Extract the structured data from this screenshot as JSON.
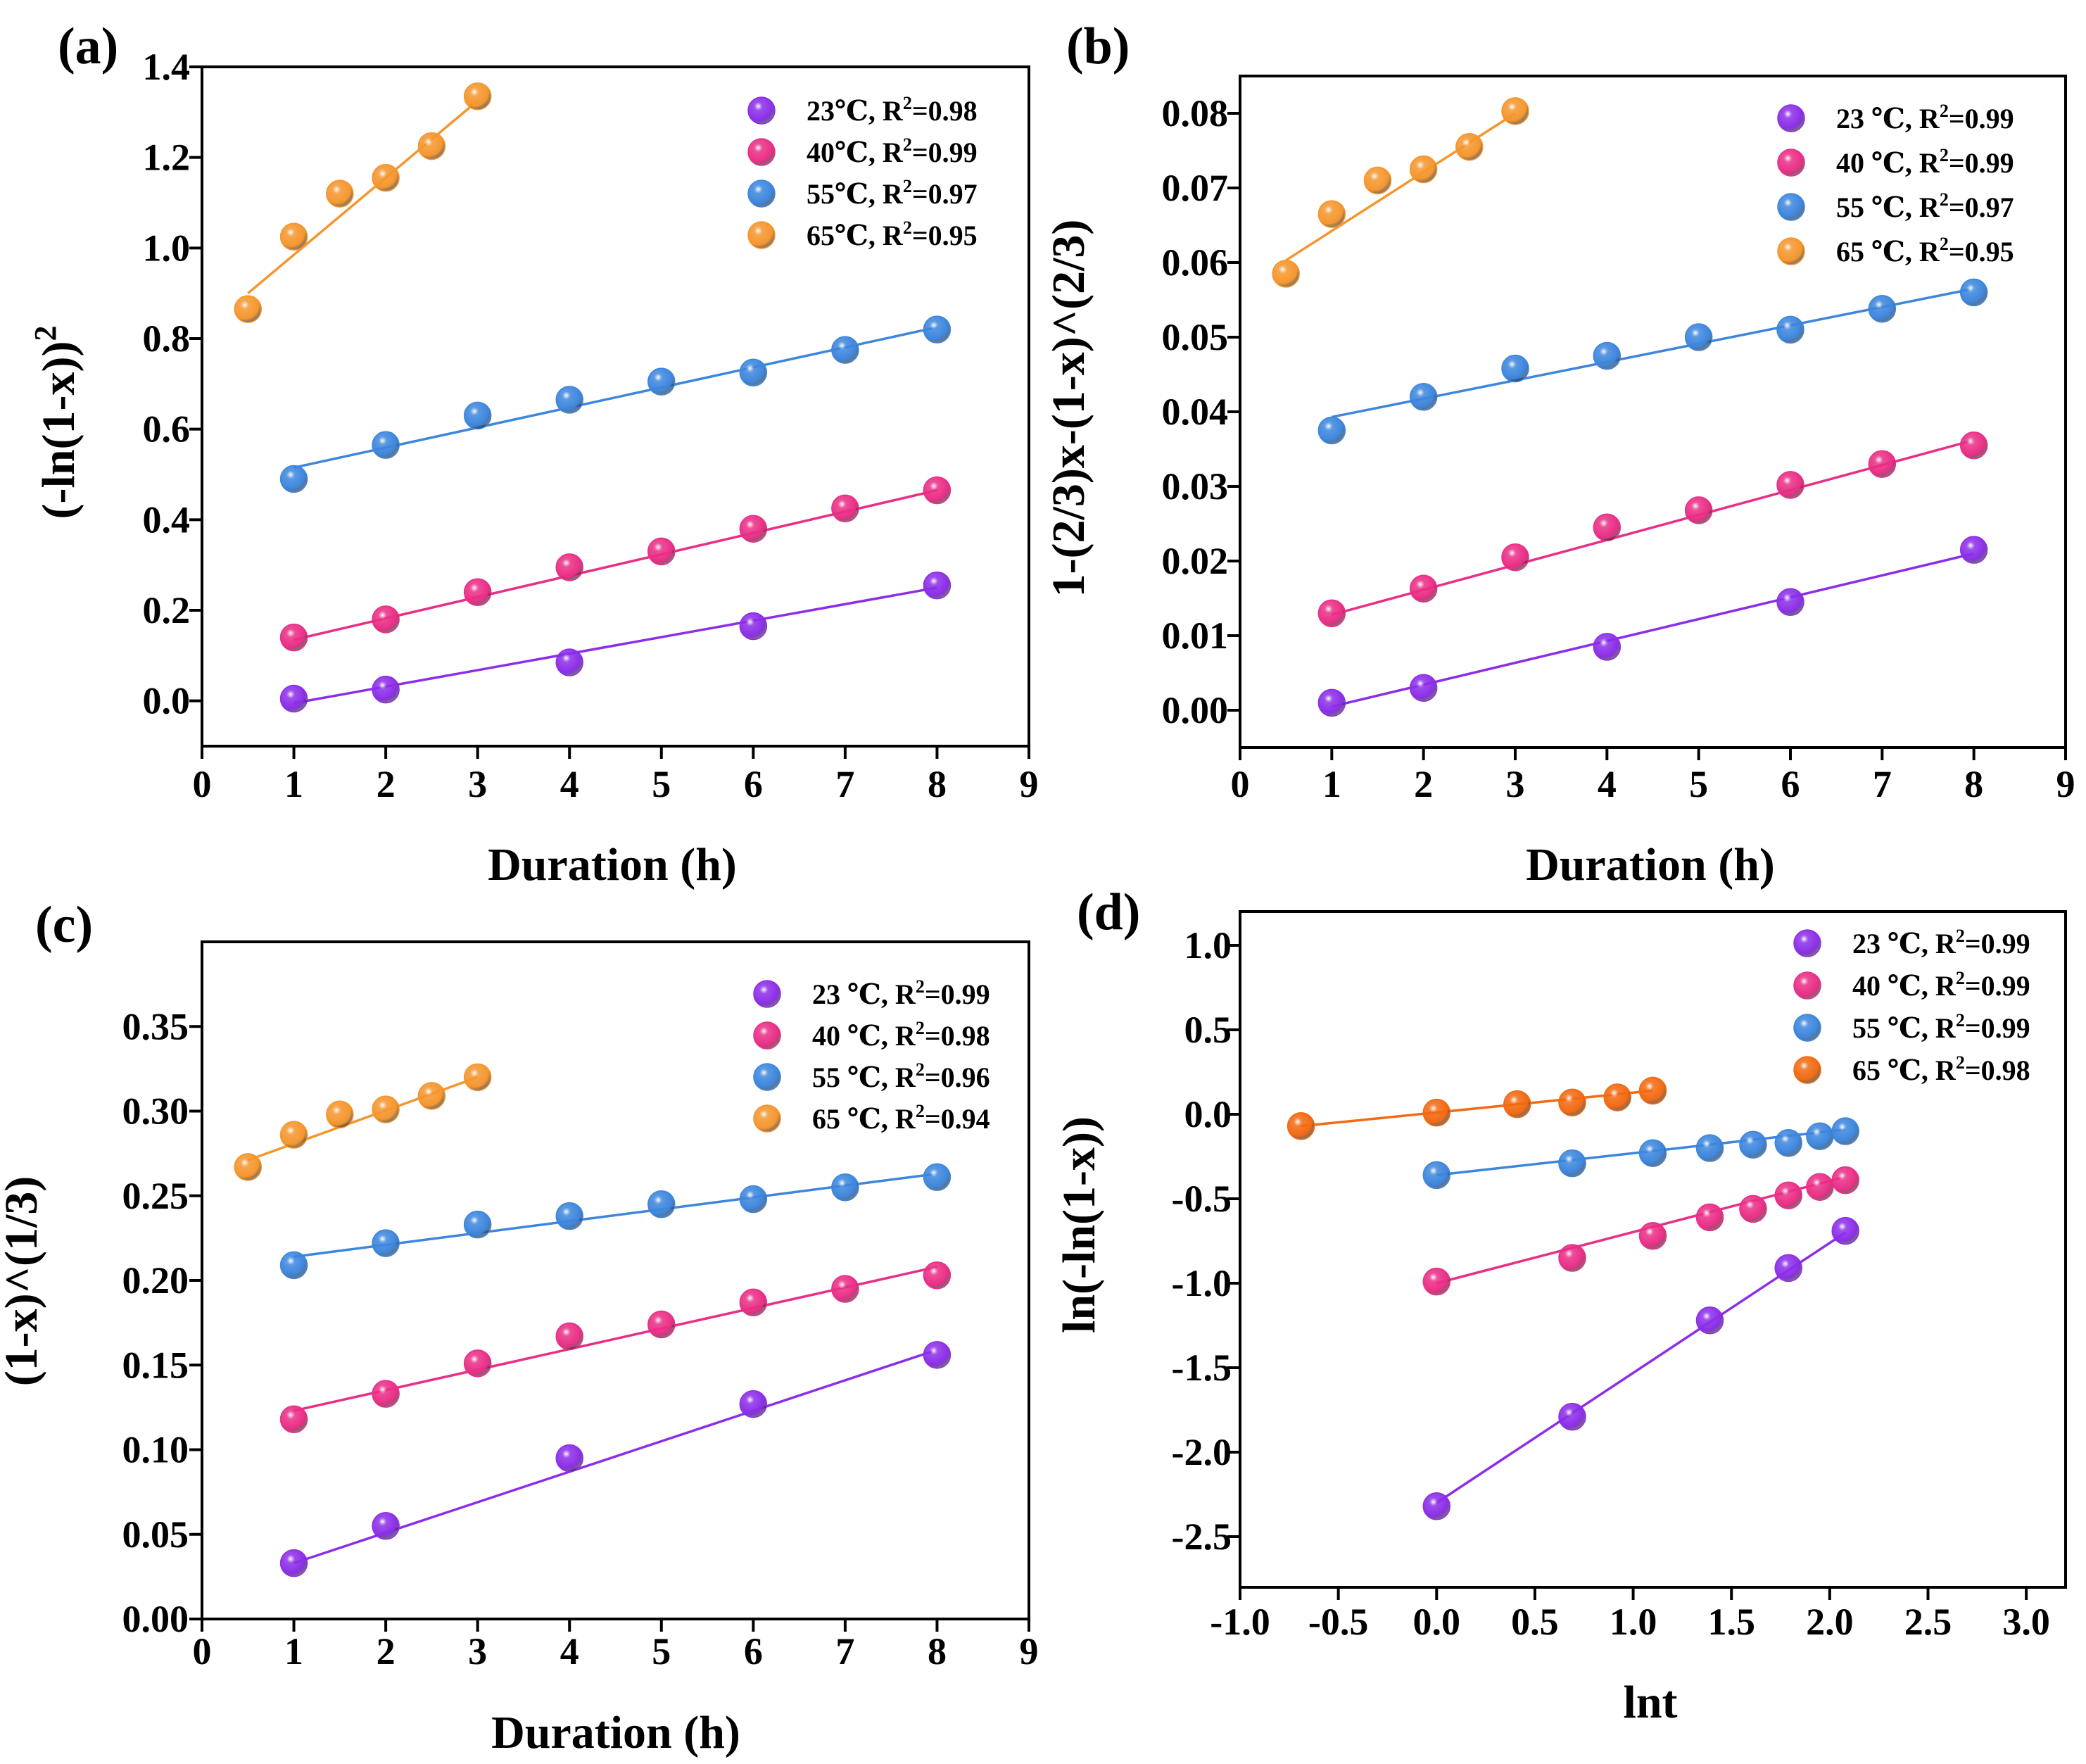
{
  "colors": {
    "23": "#8c2ee8",
    "40": "#ea2e86",
    "55": "#3d86dd",
    "65a": "#f5962e",
    "65d": "#f26a12"
  },
  "chart_data": [
    {
      "panel": "(a)",
      "type": "scatter",
      "xlabel": "Duration (h)",
      "ylabel": "(-ln(1-x))",
      "ylabel_sup": "2",
      "xlim": [
        0,
        9
      ],
      "ylim": [
        -0.1,
        1.4
      ],
      "xticks": [
        0,
        1,
        2,
        3,
        4,
        5,
        6,
        7,
        8,
        9
      ],
      "xtick_labels": [
        "0",
        "1",
        "2",
        "3",
        "4",
        "5",
        "6",
        "7",
        "8",
        "9"
      ],
      "yticks": [
        0.0,
        0.2,
        0.4,
        0.6,
        0.8,
        1.0,
        1.2,
        1.4
      ],
      "ytick_labels": [
        "0.0",
        "0.2",
        "0.4",
        "0.6",
        "0.8",
        "1.0",
        "1.2",
        "1.4"
      ],
      "legend_position": "top-right",
      "series": [
        {
          "name": "23℃",
          "r2_text": "=0.98",
          "color_key": "23",
          "x": [
            1,
            2,
            4,
            6,
            8
          ],
          "y": [
            0.005,
            0.025,
            0.085,
            0.165,
            0.255
          ],
          "fit": [
            [
              1,
              -0.005
            ],
            [
              8,
              0.25
            ]
          ]
        },
        {
          "name": "40℃",
          "r2_text": "=0.99",
          "color_key": "40",
          "x": [
            1,
            2,
            3,
            4,
            5,
            6,
            7,
            8
          ],
          "y": [
            0.14,
            0.18,
            0.24,
            0.295,
            0.33,
            0.38,
            0.425,
            0.465
          ],
          "fit": [
            [
              1,
              0.135
            ],
            [
              8,
              0.465
            ]
          ]
        },
        {
          "name": "55℃",
          "r2_text": "=0.97",
          "color_key": "55",
          "x": [
            1,
            2,
            3,
            4,
            5,
            6,
            7,
            8
          ],
          "y": [
            0.49,
            0.565,
            0.63,
            0.665,
            0.705,
            0.725,
            0.775,
            0.82
          ],
          "fit": [
            [
              1,
              0.515
            ],
            [
              8,
              0.825
            ]
          ]
        },
        {
          "name": "65℃",
          "r2_text": "=0.95",
          "color_key": "65a",
          "x": [
            0.5,
            1,
            1.5,
            2,
            2.5,
            3
          ],
          "y": [
            0.865,
            1.025,
            1.12,
            1.155,
            1.225,
            1.335
          ],
          "fit": [
            [
              0.5,
              0.9
            ],
            [
              3,
              1.325
            ]
          ]
        }
      ]
    },
    {
      "panel": "(b)",
      "type": "scatter",
      "xlabel": "Duration (h)",
      "ylabel": "1-(2/3)x-(1-x)^(2/3)",
      "xlim": [
        0,
        9
      ],
      "ylim": [
        -0.005,
        0.085
      ],
      "xticks": [
        0,
        1,
        2,
        3,
        4,
        5,
        6,
        7,
        8,
        9
      ],
      "xtick_labels": [
        "0",
        "1",
        "2",
        "3",
        "4",
        "5",
        "6",
        "7",
        "8",
        "9"
      ],
      "yticks": [
        0.0,
        0.01,
        0.02,
        0.03,
        0.04,
        0.05,
        0.06,
        0.07,
        0.08
      ],
      "ytick_labels": [
        "0.00",
        "0.01",
        "0.02",
        "0.03",
        "0.04",
        "0.05",
        "0.06",
        "0.07",
        "0.08"
      ],
      "legend_position": "top-right",
      "series": [
        {
          "name": "23 ℃",
          "r2_text": "=0.99",
          "color_key": "23",
          "x": [
            1,
            2,
            4,
            6,
            8
          ],
          "y": [
            0.001,
            0.003,
            0.0085,
            0.0145,
            0.0215
          ],
          "fit": [
            [
              1,
              0.0005
            ],
            [
              8,
              0.021
            ]
          ]
        },
        {
          "name": "40 ℃",
          "r2_text": "=0.99",
          "color_key": "40",
          "x": [
            1,
            2,
            3,
            4,
            5,
            6,
            7,
            8
          ],
          "y": [
            0.013,
            0.0163,
            0.0205,
            0.0245,
            0.0268,
            0.0302,
            0.033,
            0.0355
          ],
          "fit": [
            [
              1,
              0.0128
            ],
            [
              8,
              0.0362
            ]
          ]
        },
        {
          "name": "55 ℃",
          "r2_text": "=0.97",
          "color_key": "55",
          "x": [
            1,
            2,
            3,
            4,
            5,
            6,
            7,
            8
          ],
          "y": [
            0.0375,
            0.042,
            0.0458,
            0.0475,
            0.05,
            0.051,
            0.0538,
            0.056
          ],
          "fit": [
            [
              1,
              0.0393
            ],
            [
              8,
              0.0565
            ]
          ]
        },
        {
          "name": "65 ℃",
          "r2_text": "=0.95",
          "color_key": "65a",
          "x": [
            0.5,
            1,
            1.5,
            2,
            2.5,
            3
          ],
          "y": [
            0.0585,
            0.0665,
            0.071,
            0.0725,
            0.0755,
            0.0803
          ],
          "fit": [
            [
              0.5,
              0.0603
            ],
            [
              3,
              0.08
            ]
          ]
        }
      ]
    },
    {
      "panel": "(c)",
      "type": "scatter",
      "xlabel": "Duration (h)",
      "ylabel": "(1-x)^(1/3)",
      "xlim": [
        0,
        9
      ],
      "ylim": [
        0,
        0.4
      ],
      "xticks": [
        0,
        1,
        2,
        3,
        4,
        5,
        6,
        7,
        8,
        9
      ],
      "xtick_labels": [
        "0",
        "1",
        "2",
        "3",
        "4",
        "5",
        "6",
        "7",
        "8",
        "9"
      ],
      "yticks": [
        0.0,
        0.05,
        0.1,
        0.15,
        0.2,
        0.25,
        0.3,
        0.35
      ],
      "ytick_labels": [
        "0.00",
        "0.05",
        "0.10",
        "0.15",
        "0.20",
        "0.25",
        "0.30",
        "0.35"
      ],
      "legend_position": "top-right",
      "series": [
        {
          "name": "23 ℃",
          "r2_text": "=0.99",
          "color_key": "23",
          "x": [
            1,
            2,
            4,
            6,
            8
          ],
          "y": [
            0.033,
            0.055,
            0.095,
            0.127,
            0.156
          ],
          "fit": [
            [
              1,
              0.033
            ],
            [
              8,
              0.159
            ]
          ]
        },
        {
          "name": "40 ℃",
          "r2_text": "=0.98",
          "color_key": "40",
          "x": [
            1,
            2,
            3,
            4,
            5,
            6,
            7,
            8
          ],
          "y": [
            0.118,
            0.133,
            0.151,
            0.167,
            0.174,
            0.187,
            0.195,
            0.203
          ],
          "fit": [
            [
              1,
              0.123
            ],
            [
              8,
              0.208
            ]
          ]
        },
        {
          "name": "55 ℃",
          "r2_text": "=0.96",
          "color_key": "55",
          "x": [
            1,
            2,
            3,
            4,
            5,
            6,
            7,
            8
          ],
          "y": [
            0.209,
            0.222,
            0.233,
            0.238,
            0.245,
            0.248,
            0.255,
            0.261
          ],
          "fit": [
            [
              1,
              0.214
            ],
            [
              8,
              0.263
            ]
          ]
        },
        {
          "name": "65 ℃",
          "r2_text": "=0.94",
          "color_key": "65a",
          "x": [
            0.5,
            1,
            1.5,
            2,
            2.5,
            3
          ],
          "y": [
            0.267,
            0.286,
            0.298,
            0.301,
            0.309,
            0.32
          ],
          "fit": [
            [
              0.5,
              0.271
            ],
            [
              3,
              0.32
            ]
          ]
        }
      ]
    },
    {
      "panel": "(d)",
      "type": "scatter",
      "xlabel": "lnt",
      "ylabel": "ln(-ln(1-x))",
      "xlim": [
        -1.0,
        3.2
      ],
      "ylim": [
        -2.8,
        1.2
      ],
      "xticks": [
        -1.0,
        -0.5,
        0.0,
        0.5,
        1.0,
        1.5,
        2.0,
        2.5,
        3.0
      ],
      "xtick_labels": [
        "-1.0",
        "-0.5",
        "0.0",
        "0.5",
        "1.0",
        "1.5",
        "2.0",
        "2.5",
        "3.0"
      ],
      "yticks": [
        -2.5,
        -2.0,
        -1.5,
        -1.0,
        -0.5,
        0.0,
        0.5,
        1.0
      ],
      "ytick_labels": [
        "-2.5",
        "-2.0",
        "-1.5",
        "-1.0",
        "-0.5",
        "0.0",
        "0.5",
        "1.0"
      ],
      "legend_position": "top-right",
      "series": [
        {
          "name": "23 ℃",
          "r2_text": "=0.99",
          "color_key": "23",
          "x": [
            0,
            0.69,
            1.39,
            1.79,
            2.08
          ],
          "y": [
            -2.32,
            -1.79,
            -1.22,
            -0.91,
            -0.69
          ],
          "fit": [
            [
              0,
              -2.3
            ],
            [
              2.08,
              -0.7
            ]
          ]
        },
        {
          "name": "40 ℃",
          "r2_text": "=0.99",
          "color_key": "40",
          "x": [
            0,
            0.69,
            1.1,
            1.39,
            1.61,
            1.79,
            1.95,
            2.08
          ],
          "y": [
            -0.99,
            -0.85,
            -0.72,
            -0.61,
            -0.56,
            -0.48,
            -0.43,
            -0.39
          ],
          "fit": [
            [
              0,
              -1.0
            ],
            [
              2.08,
              -0.37
            ]
          ]
        },
        {
          "name": "55 ℃",
          "r2_text": "=0.99",
          "color_key": "55",
          "x": [
            0,
            0.69,
            1.1,
            1.39,
            1.61,
            1.79,
            1.95,
            2.08
          ],
          "y": [
            -0.36,
            -0.29,
            -0.23,
            -0.2,
            -0.18,
            -0.17,
            -0.13,
            -0.1
          ],
          "fit": [
            [
              0,
              -0.36
            ],
            [
              2.08,
              -0.09
            ]
          ]
        },
        {
          "name": "65 ℃",
          "r2_text": "=0.98",
          "color_key": "65d",
          "x": [
            -0.69,
            0,
            0.41,
            0.69,
            0.92,
            1.1
          ],
          "y": [
            -0.07,
            0.01,
            0.06,
            0.07,
            0.1,
            0.14
          ],
          "fit": [
            [
              -0.69,
              -0.07
            ],
            [
              1.1,
              0.14
            ]
          ]
        }
      ]
    }
  ]
}
